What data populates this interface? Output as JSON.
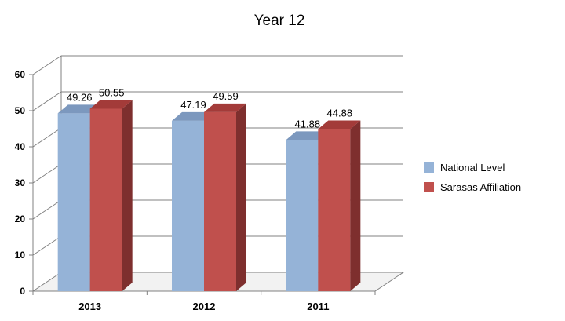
{
  "chart_data": {
    "type": "bar",
    "title": "Year 12",
    "categories": [
      "2013",
      "2012",
      "2011"
    ],
    "series": [
      {
        "name": "National Level",
        "values": [
          49.26,
          47.19,
          41.88
        ],
        "color": "#95B3D7",
        "side_color": "#6D8BB3",
        "top_color": "#7C98BE"
      },
      {
        "name": "Sarasas Affiliation",
        "values": [
          50.55,
          49.59,
          44.88
        ],
        "color": "#C0504D",
        "side_color": "#7E2F2E",
        "top_color": "#A33B39"
      }
    ],
    "value_labels": [
      [
        "49.26",
        "47.19",
        "41.88"
      ],
      [
        "50.55",
        "49.59",
        "44.88"
      ]
    ],
    "y_ticks": [
      0,
      10,
      20,
      30,
      40,
      50,
      60
    ],
    "ylim": [
      0,
      60
    ],
    "grid": true,
    "legend_position": "right"
  }
}
